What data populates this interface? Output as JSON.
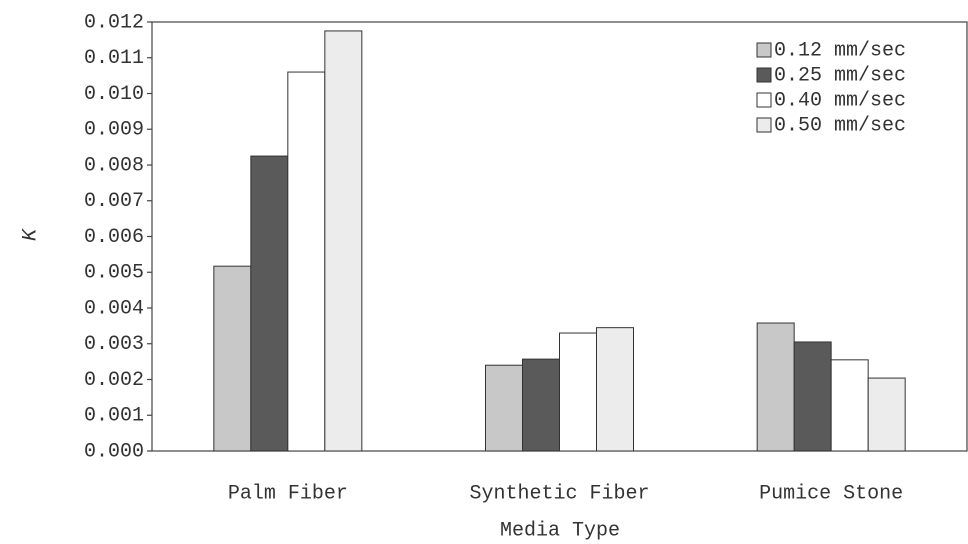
{
  "chart_data": {
    "type": "bar",
    "x_label": "Media Type",
    "y_label": "K",
    "categories": [
      "Palm Fiber",
      "Synthetic Fiber",
      "Pumice Stone"
    ],
    "series": [
      {
        "name": "0.12 mm/sec",
        "color": "#c8c8c8",
        "values": [
          0.00517,
          0.0024,
          0.00358
        ]
      },
      {
        "name": "0.25 mm/sec",
        "color": "#5a5a5a",
        "values": [
          0.00825,
          0.00257,
          0.00305
        ]
      },
      {
        "name": "0.40 mm/sec",
        "color": "#ffffff",
        "values": [
          0.0106,
          0.0033,
          0.00255
        ]
      },
      {
        "name": "0.50 mm/sec",
        "color": "#ececec",
        "values": [
          0.01175,
          0.00345,
          0.00204
        ]
      }
    ],
    "ylim": [
      0,
      0.012
    ],
    "yticks": [
      {
        "value": 0,
        "label": "0.000"
      },
      {
        "value": 0.001,
        "label": "0.001"
      },
      {
        "value": 0.002,
        "label": "0.002"
      },
      {
        "value": 0.003,
        "label": "0.003"
      },
      {
        "value": 0.004,
        "label": "0.004"
      },
      {
        "value": 0.005,
        "label": "0.005"
      },
      {
        "value": 0.006,
        "label": "0.006"
      },
      {
        "value": 0.007,
        "label": "0.007"
      },
      {
        "value": 0.008,
        "label": "0.008"
      },
      {
        "value": 0.009,
        "label": "0.009"
      },
      {
        "value": 0.01,
        "label": "0.010"
      },
      {
        "value": 0.011,
        "label": "0.011"
      },
      {
        "value": 0.012,
        "label": "0.012"
      }
    ],
    "legend": "top-right"
  }
}
